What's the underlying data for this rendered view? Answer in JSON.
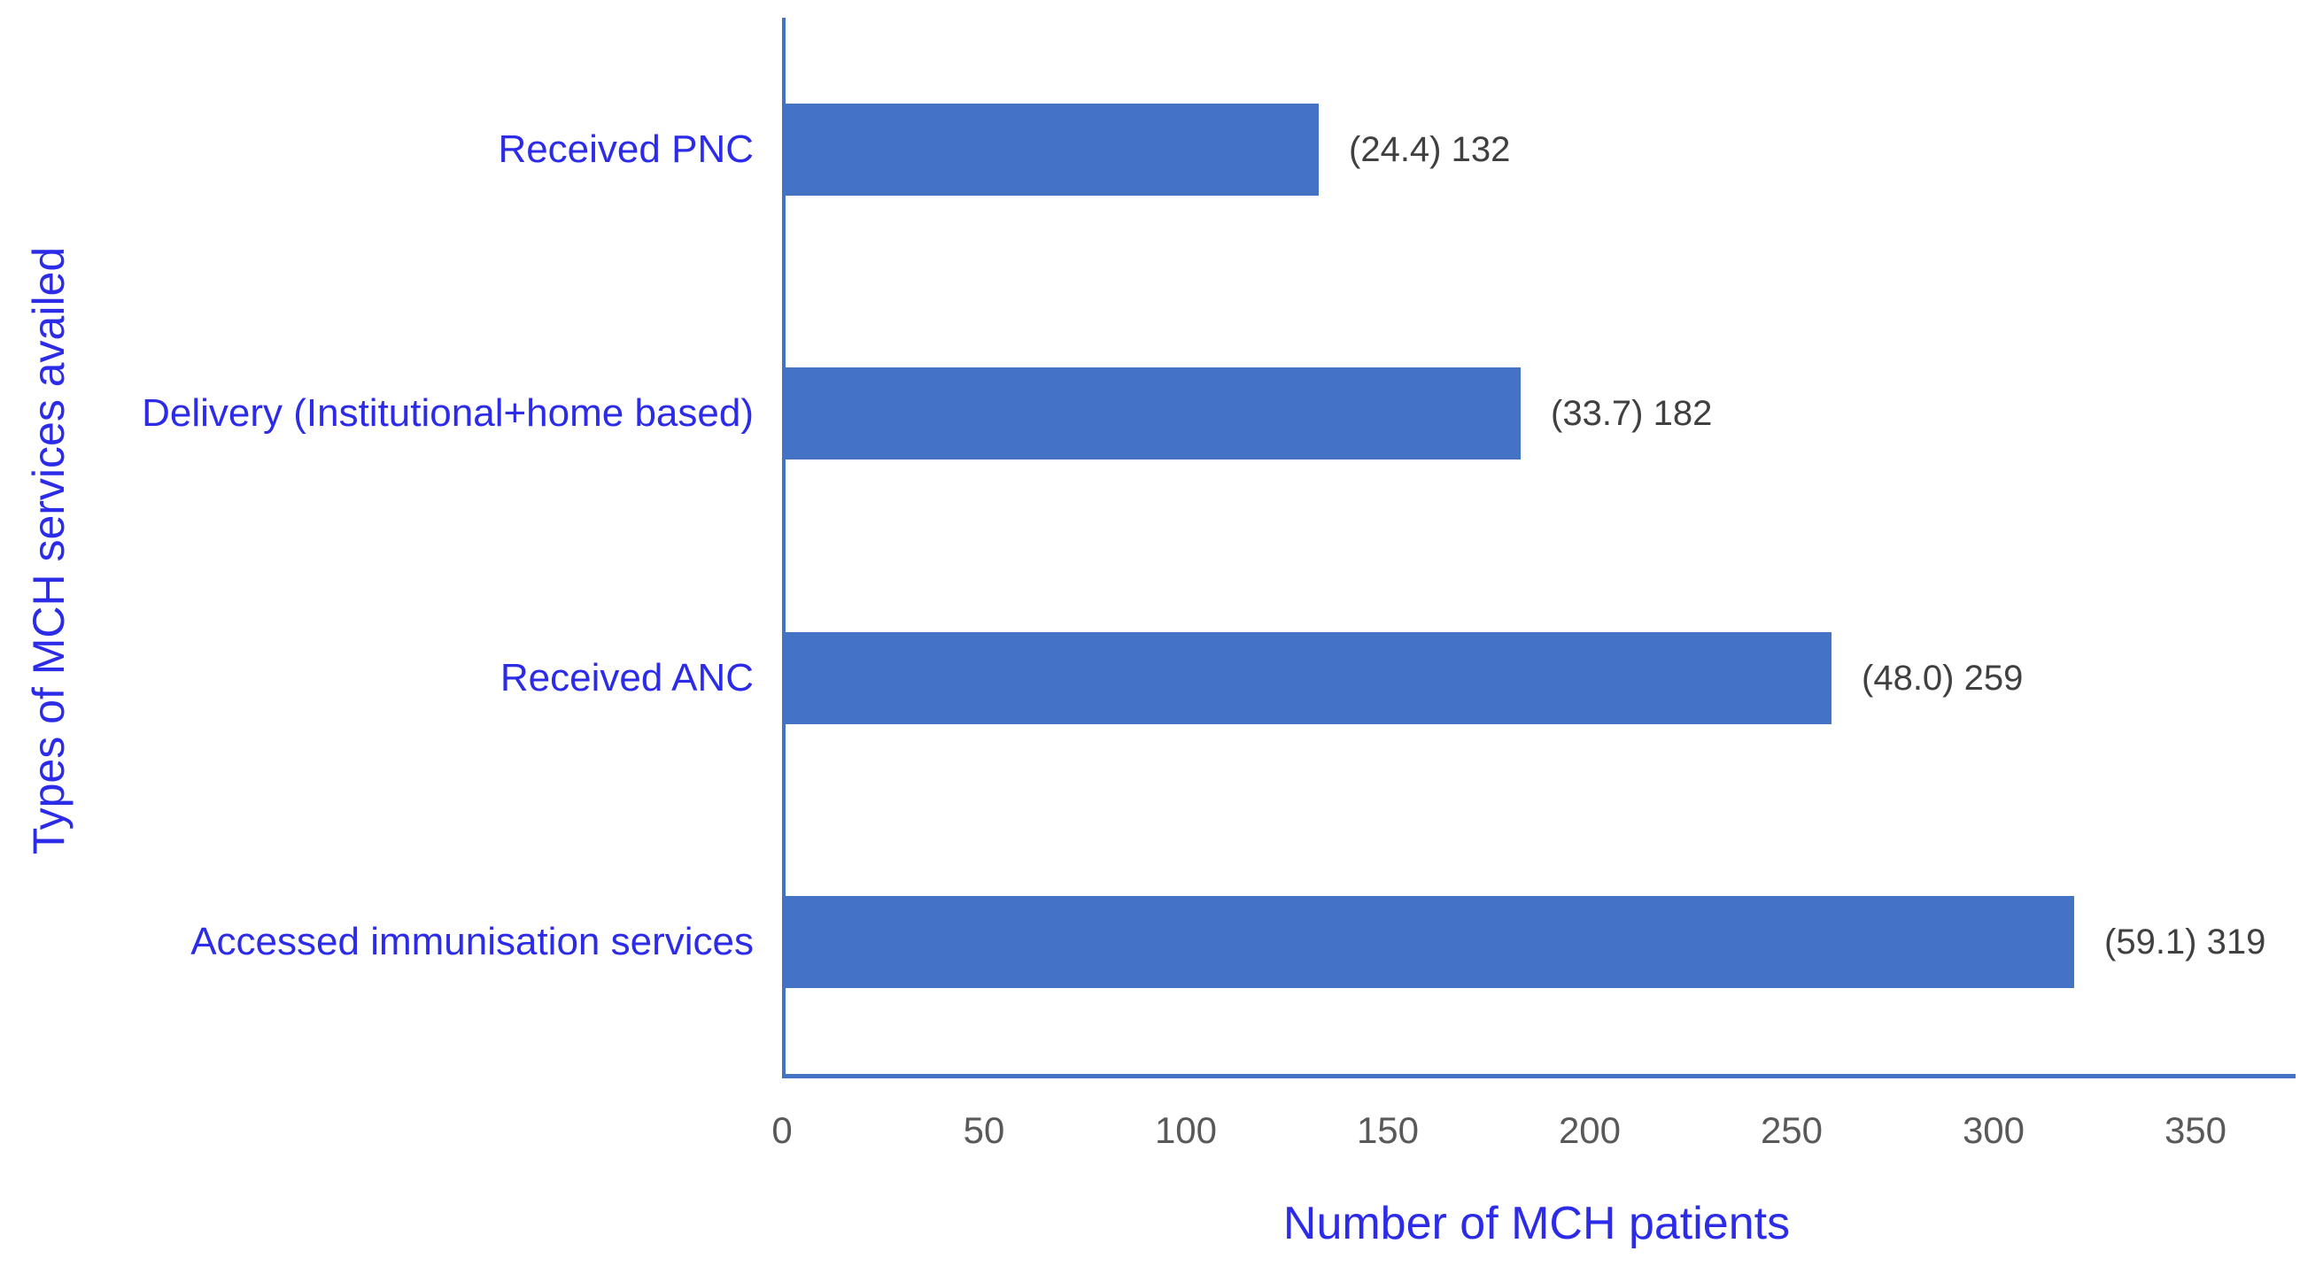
{
  "chart_data": {
    "type": "bar",
    "orientation": "horizontal",
    "title": "",
    "xlabel": "Number of MCH patients",
    "ylabel": "Types of MCH services availed",
    "categories": [
      "Received PNC",
      "Delivery (Institutional+home based)",
      "Received ANC",
      "Accessed immunisation services"
    ],
    "values": [
      132,
      182,
      259,
      319
    ],
    "percentages": [
      24.4,
      33.7,
      48.0,
      59.1
    ],
    "data_labels": [
      "(24.4) 132",
      "(33.7) 182",
      "(48.0) 259",
      "(59.1) 319"
    ],
    "x_ticks": [
      0,
      50,
      100,
      150,
      200,
      250,
      300,
      350
    ],
    "xlim": [
      0,
      374
    ],
    "grid": false,
    "legend": null,
    "bar_color": "#4472C4",
    "axis_line_color": "#4472C4",
    "category_label_color": "#2B2BE8",
    "axis_title_color": "#2B2BE8",
    "tick_label_color": "#595959",
    "data_label_color": "#404040"
  }
}
